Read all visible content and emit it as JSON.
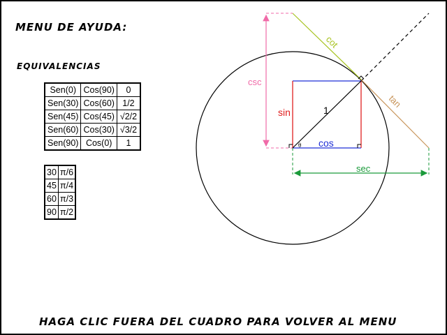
{
  "title": "MENU DE AYUDA:",
  "subtitle": "EQUIVALENCIAS",
  "footer": "HAGA CLIC FUERA DEL CUADRO PARA VOLVER AL MENU",
  "equivalences": [
    [
      "Sen(0)",
      "Cos(90)",
      "0"
    ],
    [
      "Sen(30)",
      "Cos(60)",
      "1/2"
    ],
    [
      "Sen(45)",
      "Cos(45)",
      "√2/2"
    ],
    [
      "Sen(60)",
      "Cos(30)",
      "√3/2"
    ],
    [
      "Sen(90)",
      "Cos(0)",
      "1"
    ]
  ],
  "angles": [
    [
      "30",
      "π/6"
    ],
    [
      "45",
      "π/4"
    ],
    [
      "60",
      "π/3"
    ],
    [
      "90",
      "π/2"
    ]
  ],
  "diagram_labels": {
    "sin": "sin",
    "cos": "cos",
    "tan": "tan",
    "cot": "cot",
    "sec": "sec",
    "csc": "csc",
    "radius": "1",
    "theta": "θ"
  },
  "colors": {
    "sin": "#e02020",
    "cos": "#1f2fd6",
    "tan": "#c8955a",
    "cot": "#a6c21e",
    "sec": "#1a9a3a",
    "csc": "#f06aa8"
  }
}
